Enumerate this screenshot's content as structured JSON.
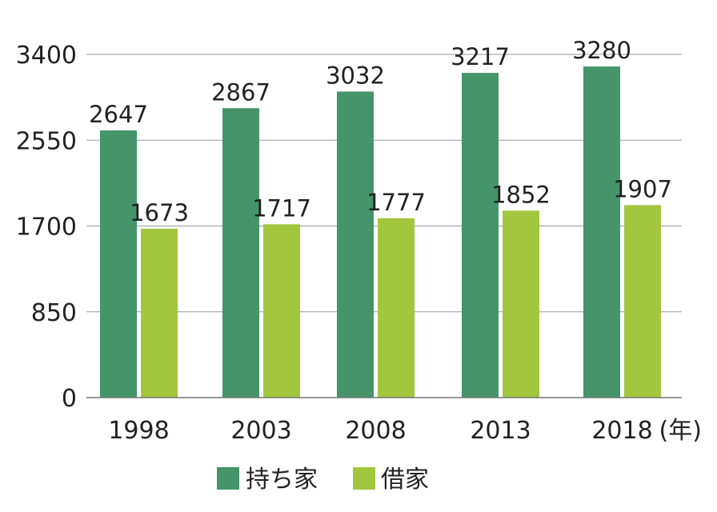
{
  "chart_data": {
    "type": "bar",
    "categories": [
      "1998",
      "2003",
      "2008",
      "2013",
      "2018"
    ],
    "x_unit_suffix": "(年)",
    "series": [
      {
        "name": "持ち家",
        "color": "#45946a",
        "values": [
          2647,
          2867,
          3032,
          3217,
          3280
        ]
      },
      {
        "name": "借家",
        "color": "#a2c63e",
        "values": [
          1673,
          1717,
          1777,
          1852,
          1907
        ]
      }
    ],
    "yticks": [
      0,
      850,
      1700,
      2550,
      3400
    ],
    "ylim": [
      0,
      3400
    ],
    "grid": true,
    "legend_position": "bottom"
  }
}
